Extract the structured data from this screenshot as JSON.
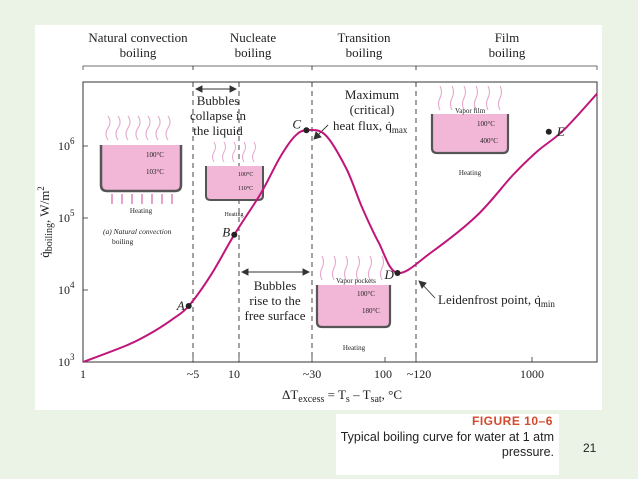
{
  "chart_data": {
    "type": "line",
    "x_scale": "log",
    "y_scale": "log",
    "xlim": [
      1,
      2500
    ],
    "ylim": [
      1000,
      5000000
    ],
    "xlabel": "ΔT",
    "xlabel_sub1": "excess",
    "xlabel_mid": " = T",
    "xlabel_sub2": "s",
    "xlabel_mid2": " – T",
    "xlabel_sub3": "sat",
    "xlabel_end": ", °C",
    "ylabel_main": "q̇",
    "ylabel_sub": "boiling",
    "ylabel_unit": ", W/m",
    "ylabel_sup": "2",
    "x_ticks": [
      "1",
      "~5",
      "10",
      "~30",
      "100",
      "~120",
      "1000"
    ],
    "y_ticks": [
      {
        "base": "10",
        "exp": "3"
      },
      {
        "base": "10",
        "exp": "4"
      },
      {
        "base": "10",
        "exp": "5"
      },
      {
        "base": "10",
        "exp": "6"
      }
    ],
    "curve": {
      "x": [
        1,
        2,
        3,
        4,
        5,
        7,
        10,
        15,
        20,
        25,
        30,
        40,
        55,
        70,
        90,
        120,
        200,
        400,
        700,
        1000,
        1500,
        2500
      ],
      "y": [
        1000,
        1700,
        2600,
        3800,
        5500,
        14000,
        48000,
        170000,
        500000,
        950000,
        1150000,
        1000000,
        360000,
        110000,
        38000,
        15000,
        28000,
        85000,
        300000,
        600000,
        1150000,
        3500000
      ]
    },
    "points": [
      {
        "label": "A",
        "x": 5,
        "y": 5500
      },
      {
        "label": "B",
        "x": 10,
        "y": 48000
      },
      {
        "label": "C",
        "x": 30,
        "y": 1150000
      },
      {
        "label": "D",
        "x": 120,
        "y": 15000
      },
      {
        "label": "E",
        "x": 1200,
        "y": 1100000
      }
    ],
    "regions": [
      {
        "line1": "Natural convection",
        "line2": "boiling"
      },
      {
        "line1": "Nucleate",
        "line2": "boiling"
      },
      {
        "line1": "Transition",
        "line2": "boiling"
      },
      {
        "line1": "Film",
        "line2": "boiling"
      }
    ],
    "annotations": {
      "collapse": [
        "Bubbles",
        "collapse in",
        "the liquid"
      ],
      "rise": [
        "Bubbles",
        "rise to the",
        "free surface"
      ],
      "max_flux": [
        "Maximum",
        "(critical)",
        "heat flux, q̇",
        "max"
      ],
      "leidenfrost": [
        "Leidenfrost point, q̇",
        "min"
      ]
    },
    "insets": {
      "natural": {
        "t1": "100°C",
        "t2": "103°C",
        "heating": "Heating",
        "cap1": "(a) Natural convection",
        "cap2": "boiling"
      },
      "nucleate": {
        "t1": "100°C",
        "t2": "110°C",
        "heating": "Heating"
      },
      "transition": {
        "label": "Vapor pockets",
        "t1": "100°C",
        "t2": "180°C",
        "heating": "Heating"
      },
      "film": {
        "label": "Vapor film",
        "t1": "100°C",
        "t2": "400°C",
        "heating": "Heating"
      }
    }
  },
  "figure": {
    "title": "FIGURE 10–6",
    "caption": "Typical boiling curve for water at 1 atm pressure."
  },
  "slide_number": "21",
  "colors": {
    "background": "#eaf3e6",
    "curve": "#c0157a",
    "liquid": "#f2b6d6",
    "accent": "#d24a2c"
  }
}
